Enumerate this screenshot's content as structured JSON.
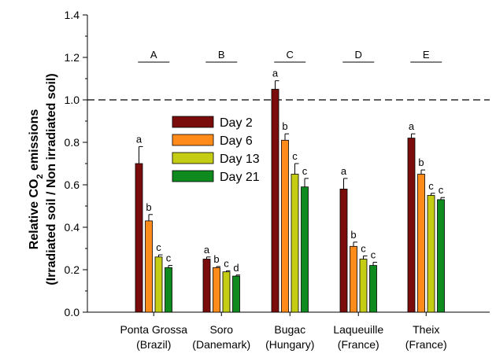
{
  "chart_data": {
    "type": "bar",
    "ylabel_line1": "Relative CO",
    "ylabel_sub": "2",
    "ylabel_line1_tail": " emissions",
    "ylabel_line2": "(Irradiated soil / Non irradiated soil)",
    "ylim": [
      0,
      1.4
    ],
    "yticks": [
      "0.0",
      "0.2",
      "0.4",
      "0.6",
      "0.8",
      "1.0",
      "1.2",
      "1.4"
    ],
    "reference_line": 1.0,
    "categories": [
      {
        "name": "Ponta Grossa",
        "sub": "(Brazil)",
        "group": "A"
      },
      {
        "name": "Soro",
        "sub": "(Danemark)",
        "group": "B"
      },
      {
        "name": "Bugac",
        "sub": "(Hungary)",
        "group": "C"
      },
      {
        "name": "Laqueuille",
        "sub": "(France)",
        "group": "D"
      },
      {
        "name": "Theix",
        "sub": "(France)",
        "group": "E"
      }
    ],
    "series": [
      {
        "name": "Day 2",
        "color": "#7b0c0c",
        "values": [
          0.7,
          0.25,
          1.05,
          0.58,
          0.82
        ],
        "errors": [
          0.08,
          0.01,
          0.04,
          0.05,
          0.02
        ],
        "letters": [
          "a",
          "a",
          "a",
          "a",
          "a"
        ]
      },
      {
        "name": "Day 6",
        "color": "#ff8c1a",
        "values": [
          0.43,
          0.21,
          0.81,
          0.31,
          0.65
        ],
        "errors": [
          0.03,
          0.005,
          0.03,
          0.02,
          0.02
        ],
        "letters": [
          "b",
          "b",
          "b",
          "b",
          "b"
        ]
      },
      {
        "name": "Day 13",
        "color": "#c5cc14",
        "values": [
          0.26,
          0.19,
          0.65,
          0.25,
          0.55
        ],
        "errors": [
          0.01,
          0.005,
          0.05,
          0.015,
          0.01
        ],
        "letters": [
          "c",
          "c",
          "c",
          "c",
          "c"
        ]
      },
      {
        "name": "Day 21",
        "color": "#0f8a1e",
        "values": [
          0.21,
          0.17,
          0.59,
          0.22,
          0.53
        ],
        "errors": [
          0.01,
          0.005,
          0.04,
          0.015,
          0.01
        ],
        "letters": [
          "c",
          "d",
          "c",
          "c",
          "c"
        ]
      }
    ],
    "legend_position": "upper-left-inside"
  }
}
